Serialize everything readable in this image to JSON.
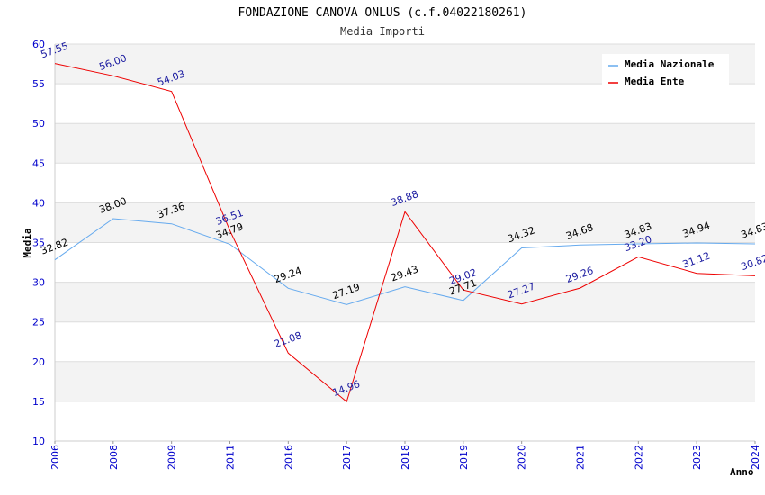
{
  "chart_data": {
    "type": "line",
    "title": "FONDAZIONE CANOVA ONLUS (c.f.04022180261)",
    "subtitle": "Media Importi",
    "xlabel": "Anno",
    "ylabel": "Media",
    "ylim": [
      10,
      60
    ],
    "yticks": [
      10,
      15,
      20,
      25,
      30,
      35,
      40,
      45,
      50,
      55,
      60
    ],
    "categories": [
      "2006",
      "2008",
      "2009",
      "2011",
      "2016",
      "2017",
      "2018",
      "2019",
      "2020",
      "2021",
      "2022",
      "2023",
      "2024"
    ],
    "series": [
      {
        "name": "Media Nazionale",
        "color": "#66aaee",
        "values": [
          32.82,
          38.0,
          37.36,
          34.79,
          29.24,
          27.19,
          29.43,
          27.71,
          34.32,
          34.68,
          34.83,
          34.94,
          34.83
        ],
        "labels": [
          "32.82",
          "38.00",
          "37.36",
          "34.79",
          "29.24",
          "27.19",
          "29.43",
          "27.71",
          "34.32",
          "34.68",
          "34.83",
          "34.94",
          "34.83"
        ]
      },
      {
        "name": "Media Ente",
        "color": "#ee0000",
        "values": [
          57.55,
          56.0,
          54.03,
          36.51,
          21.08,
          14.96,
          38.88,
          29.02,
          27.27,
          29.26,
          33.2,
          31.12,
          30.82
        ],
        "labels": [
          "57.55",
          "56.00",
          "54.03",
          "36.51",
          "21.08",
          "14.96",
          "38.88",
          "29.02",
          "27.27",
          "29.26",
          "33.20",
          "31.12",
          "30.82"
        ]
      }
    ],
    "legend_position": "top-right",
    "grid": true
  }
}
